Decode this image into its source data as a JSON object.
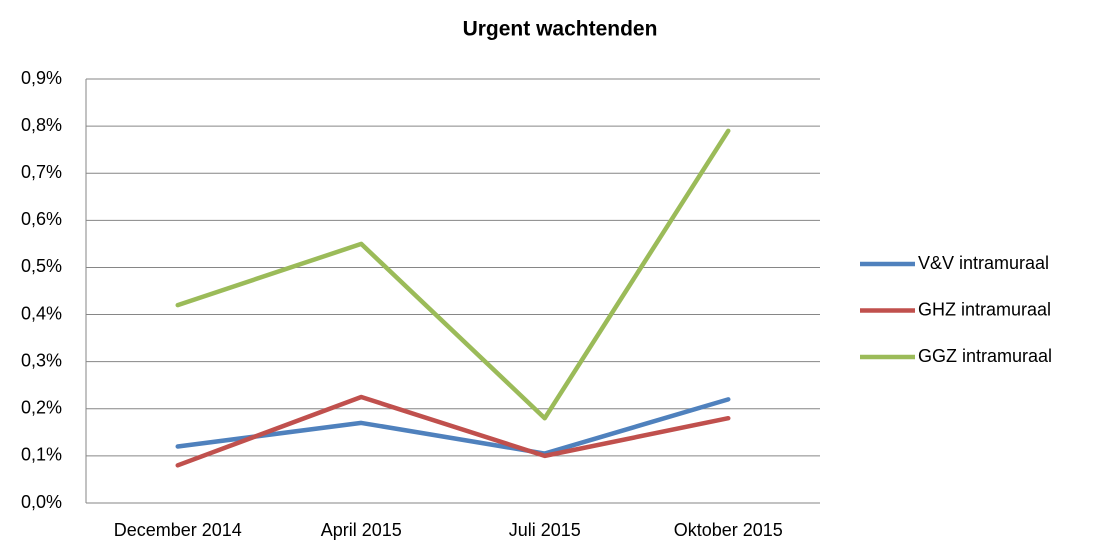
{
  "chart_data": {
    "type": "line",
    "title": "Urgent wachtenden",
    "categories": [
      "December 2014",
      "April 2015",
      "Juli 2015",
      "Oktober 2015"
    ],
    "series": [
      {
        "name": "V&V intramuraal",
        "color": "#4f81bd",
        "values": [
          0.12,
          0.17,
          0.105,
          0.22
        ]
      },
      {
        "name": "GHZ intramuraal",
        "color": "#c0504d",
        "values": [
          0.08,
          0.225,
          0.1,
          0.18
        ]
      },
      {
        "name": "GGZ intramuraal",
        "color": "#9bbb59",
        "values": [
          0.42,
          0.55,
          0.18,
          0.79
        ]
      }
    ],
    "ylim": [
      0,
      0.9
    ],
    "yticks": [
      {
        "value": 0,
        "label": "0,0%"
      },
      {
        "value": 0.1,
        "label": "0,1%"
      },
      {
        "value": 0.2,
        "label": "0,2%"
      },
      {
        "value": 0.3,
        "label": "0,3%"
      },
      {
        "value": 0.4,
        "label": "0,4%"
      },
      {
        "value": 0.5,
        "label": "0,5%"
      },
      {
        "value": 0.6,
        "label": "0,6%"
      },
      {
        "value": 0.7,
        "label": "0,7%"
      },
      {
        "value": 0.8,
        "label": "0,8%"
      },
      {
        "value": 0.9,
        "label": "0,9%"
      }
    ],
    "grid": true,
    "legend": "right"
  }
}
